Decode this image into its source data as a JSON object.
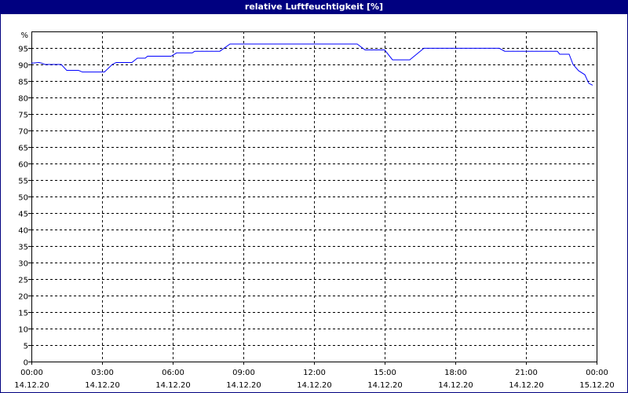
{
  "chart_data": {
    "type": "line",
    "title": "relative Luftfeuchtigkeit [%]",
    "ylabel": "%",
    "ylim": [
      0,
      100
    ],
    "yticks": [
      0,
      5,
      10,
      15,
      20,
      25,
      30,
      35,
      40,
      45,
      50,
      55,
      60,
      65,
      70,
      75,
      80,
      85,
      90,
      95
    ],
    "xlim": [
      "14.12.20 00:00",
      "15.12.20 00:00"
    ],
    "xticks": [
      {
        "time": "00:00",
        "date": "14.12.20"
      },
      {
        "time": "03:00",
        "date": "14.12.20"
      },
      {
        "time": "06:00",
        "date": "14.12.20"
      },
      {
        "time": "09:00",
        "date": "14.12.20"
      },
      {
        "time": "12:00",
        "date": "14.12.20"
      },
      {
        "time": "15:00",
        "date": "14.12.20"
      },
      {
        "time": "18:00",
        "date": "14.12.20"
      },
      {
        "time": "21:00",
        "date": "14.12.20"
      },
      {
        "time": "00:00",
        "date": "15.12.20"
      }
    ],
    "grid": true,
    "line_color": "#0000ff",
    "series": [
      {
        "points": [
          [
            "00:00",
            90.4
          ],
          [
            "00:20",
            90.6
          ],
          [
            "00:26",
            90.4
          ],
          [
            "00:34",
            90.0
          ],
          [
            "01:16",
            90.0
          ],
          [
            "01:30",
            88.2
          ],
          [
            "02:00",
            88.2
          ],
          [
            "02:10",
            87.7
          ],
          [
            "03:06",
            87.7
          ],
          [
            "03:26",
            90.0
          ],
          [
            "03:36",
            90.6
          ],
          [
            "04:16",
            90.6
          ],
          [
            "04:30",
            91.9
          ],
          [
            "04:50",
            91.9
          ],
          [
            "04:56",
            92.5
          ],
          [
            "05:56",
            92.5
          ],
          [
            "06:10",
            93.5
          ],
          [
            "06:50",
            93.5
          ],
          [
            "06:56",
            94.0
          ],
          [
            "08:00",
            94.0
          ],
          [
            "08:26",
            96.2
          ],
          [
            "13:50",
            96.2
          ],
          [
            "14:10",
            94.4
          ],
          [
            "15:00",
            94.4
          ],
          [
            "15:20",
            91.4
          ],
          [
            "16:04",
            91.4
          ],
          [
            "16:40",
            94.9
          ],
          [
            "19:52",
            94.9
          ],
          [
            "20:06",
            94.0
          ],
          [
            "22:20",
            94.0
          ],
          [
            "22:26",
            93.1
          ],
          [
            "22:50",
            93.1
          ],
          [
            "23:00",
            90.0
          ],
          [
            "23:14",
            88.1
          ],
          [
            "23:30",
            86.9
          ],
          [
            "23:40",
            84.3
          ],
          [
            "23:50",
            83.7
          ]
        ]
      }
    ]
  }
}
